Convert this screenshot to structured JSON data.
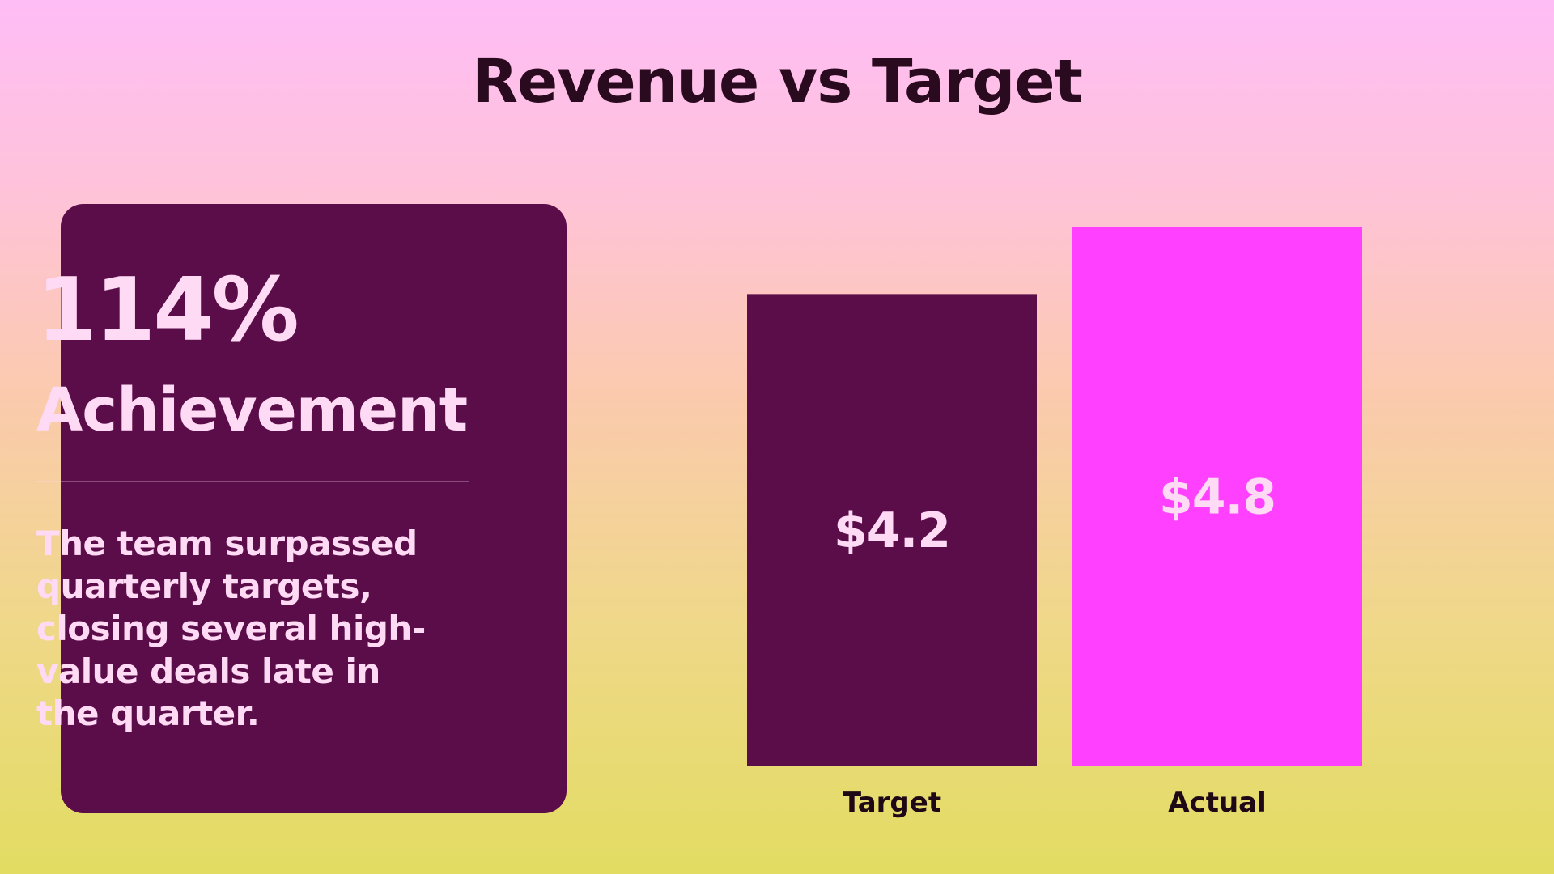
{
  "title": "Revenue vs Target",
  "card": {
    "stat": "114%",
    "stat_label": "Achievement",
    "body": "The team surpassed quarterly targets, closing several high-value deals late in the quarter."
  },
  "colors": {
    "card_bg": "#5b0d49",
    "target_bar": "#5b0d49",
    "actual_bar": "#ff40ff",
    "light_text": "#ffdaf5",
    "dark_text": "#2a0a1f"
  },
  "chart_data": {
    "type": "bar",
    "title": "Revenue vs Target",
    "categories": [
      "Target",
      "Actual"
    ],
    "values": [
      4.2,
      4.8
    ],
    "value_labels": [
      "$4.2",
      "$4.8"
    ],
    "colors": [
      "#5b0d49",
      "#ff40ff"
    ],
    "xlabel": "",
    "ylabel": "",
    "ylim": [
      0,
      4.8
    ],
    "grid": false,
    "legend": "none"
  }
}
